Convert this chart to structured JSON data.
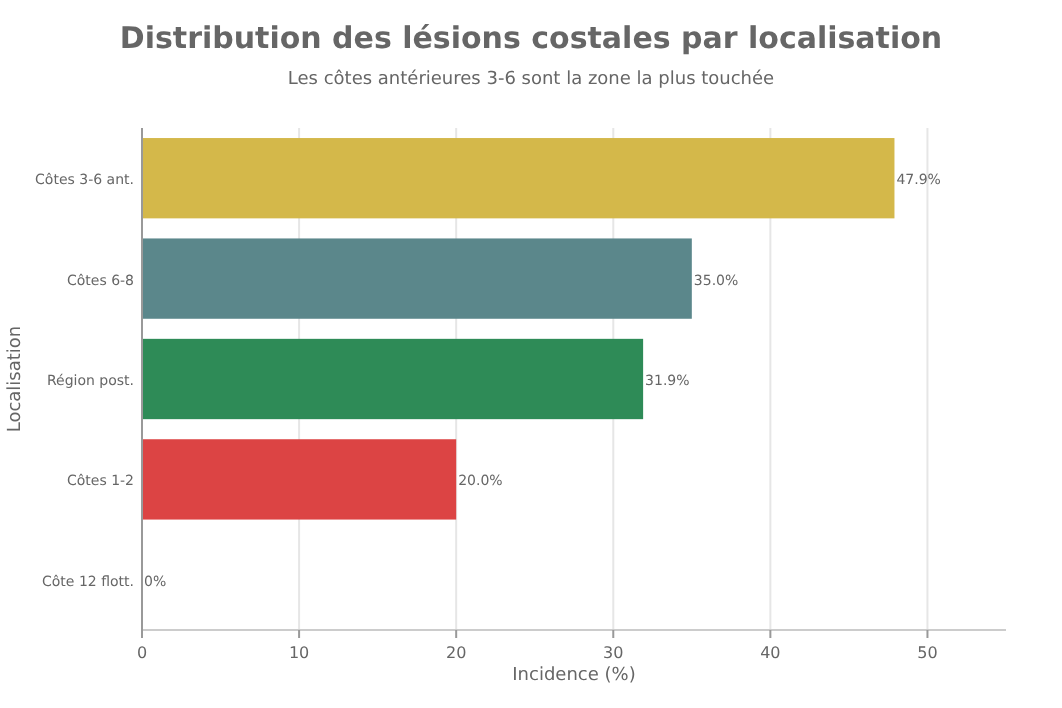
{
  "chart_data": {
    "type": "bar",
    "orientation": "horizontal",
    "title": "Distribution des lésions costales par localisation",
    "subtitle": "Les côtes antérieures 3-6 sont la zone la plus touchée",
    "xlabel": "Incidence (%)",
    "ylabel": "Localisation",
    "categories": [
      "Côtes 3-6 ant.",
      "Côtes 6-8",
      "Région post.",
      "Côtes 1-2",
      "Côte 12 flott."
    ],
    "values": [
      47.9,
      35.0,
      31.9,
      20.0,
      0
    ],
    "colors": [
      "#d4b84a",
      "#5b878b",
      "#2e8b57",
      "#dc4444",
      "#888888"
    ],
    "value_labels": [
      "47.9%",
      "35.0%",
      "31.9%",
      "20.0%",
      "0%"
    ],
    "xlim": [
      0,
      55
    ],
    "xticks": [
      0,
      10,
      20,
      30,
      40,
      50
    ],
    "grid": "x"
  }
}
